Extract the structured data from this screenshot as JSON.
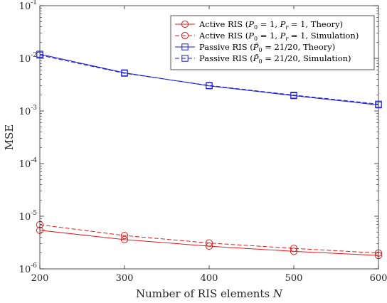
{
  "chart_data": {
    "type": "line",
    "title": "",
    "xlabel": "Number of RIS elements N",
    "ylabel": "MSE",
    "x": [
      200,
      300,
      400,
      500,
      600
    ],
    "xlim": [
      200,
      600
    ],
    "ylim": [
      1e-06,
      0.1
    ],
    "yscale": "log",
    "x_ticks": [
      "200",
      "300",
      "400",
      "500",
      "600"
    ],
    "y_ticks": [
      {
        "base": "10",
        "exp": "-6",
        "value": 1e-06
      },
      {
        "base": "10",
        "exp": "-5",
        "value": 1e-05
      },
      {
        "base": "10",
        "exp": "-4",
        "value": 0.0001
      },
      {
        "base": "10",
        "exp": "-3",
        "value": 0.001
      },
      {
        "base": "10",
        "exp": "-2",
        "value": 0.01
      },
      {
        "base": "10",
        "exp": "-1",
        "value": 0.1
      }
    ],
    "grid": false,
    "legend_position": "top-right",
    "series": [
      {
        "name": "Active RIS  (P0 = 1, Pr = 1, Theory)",
        "color": "#e41a1c",
        "dash": "solid",
        "marker": "circle",
        "values": [
          5.4e-06,
          3.6e-06,
          2.7e-06,
          2.15e-06,
          1.8e-06
        ]
      },
      {
        "name": "Active RIS  (P0 = 1, Pr = 1, Simulation)",
        "color": "#e41a1c",
        "dash": "dashed",
        "marker": "circle",
        "values": [
          6.9e-06,
          4.3e-06,
          3.1e-06,
          2.45e-06,
          2e-06
        ]
      },
      {
        "name": "Passive RIS  (P̃0 = 21/20, Theory)",
        "color": "#1a1adb",
        "dash": "solid",
        "marker": "square",
        "values": [
          0.012,
          0.0053,
          0.003,
          0.00195,
          0.0013
        ]
      },
      {
        "name": "Passive RIS  (P̃0 = 21/20, Simulation)",
        "color": "#1a1adb",
        "dash": "dashed",
        "marker": "square",
        "values": [
          0.0115,
          0.0052,
          0.00305,
          0.002,
          0.00135
        ]
      }
    ]
  }
}
